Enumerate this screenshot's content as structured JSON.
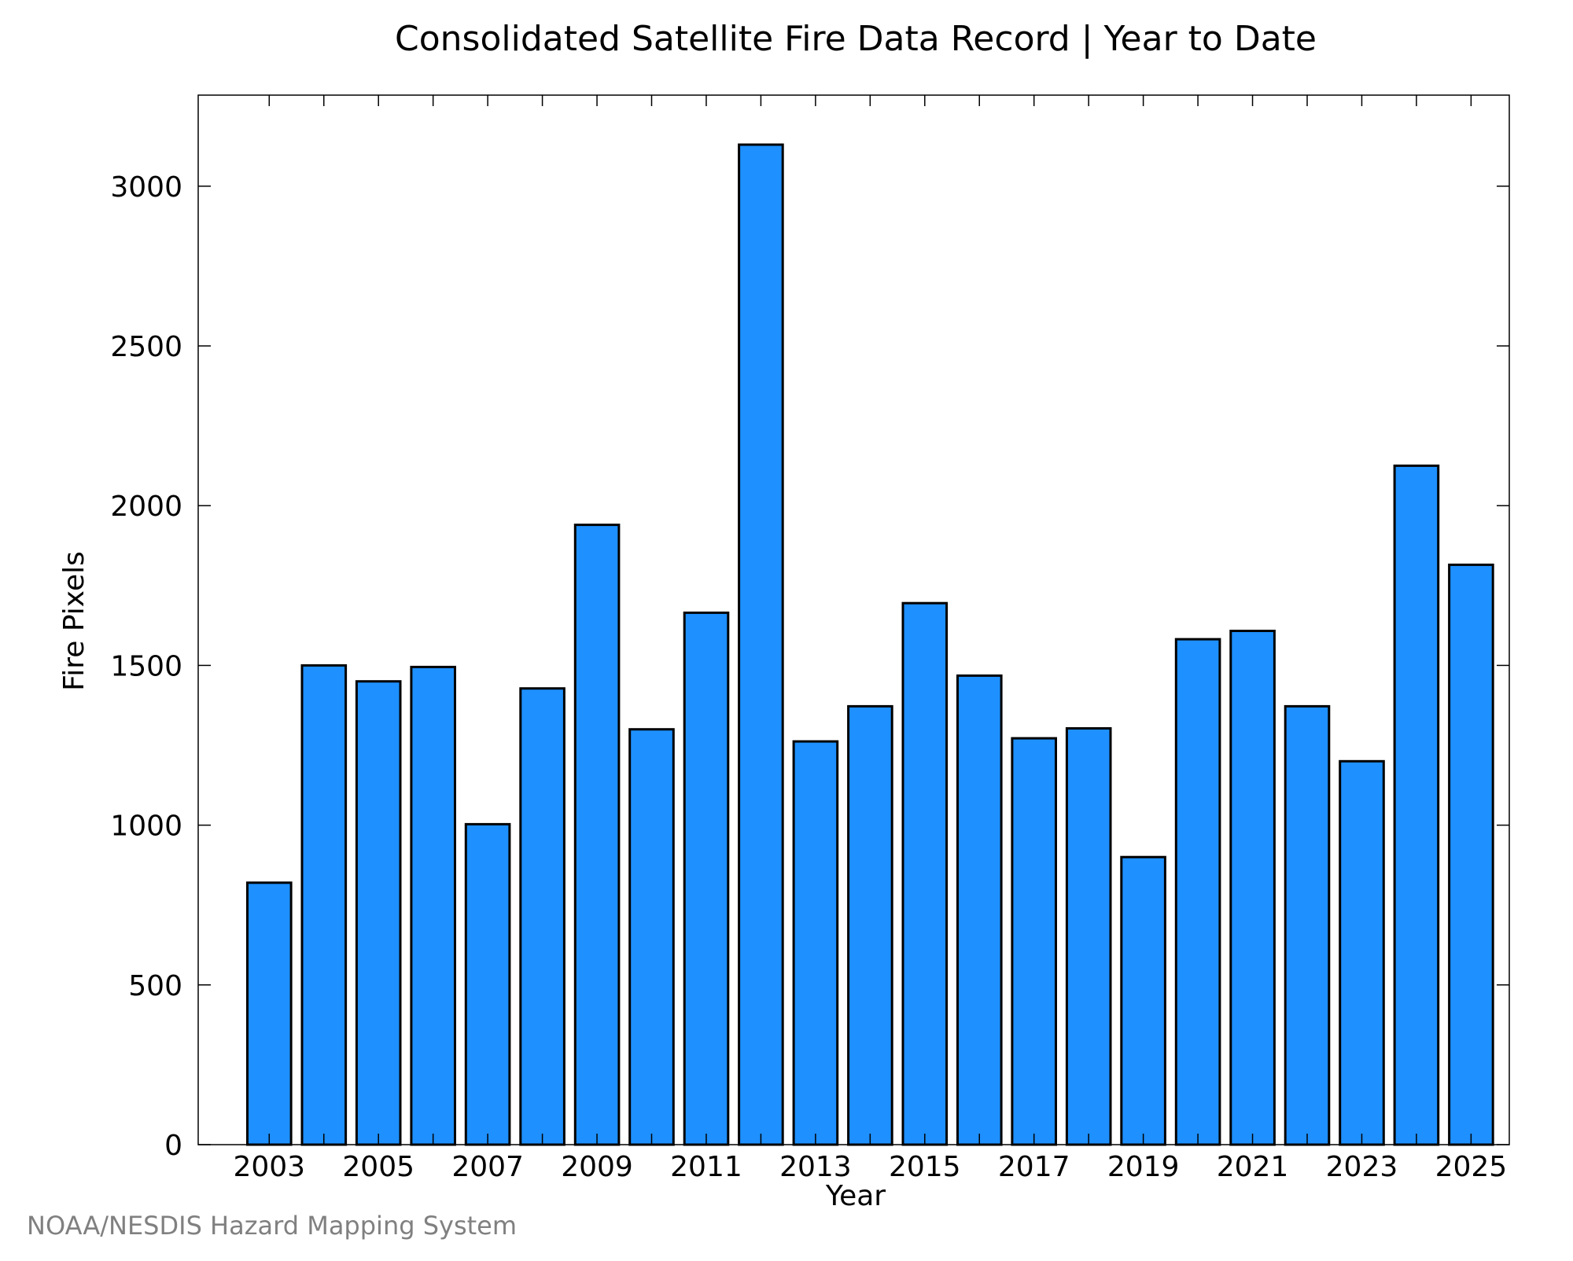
{
  "chart_data": {
    "type": "bar",
    "title": "Consolidated Satellite Fire Data Record | Year to Date",
    "xlabel": "Year",
    "ylabel": "Fire Pixels",
    "categories": [
      2003,
      2004,
      2005,
      2006,
      2007,
      2008,
      2009,
      2010,
      2011,
      2012,
      2013,
      2014,
      2015,
      2016,
      2017,
      2018,
      2019,
      2020,
      2021,
      2022,
      2023,
      2024,
      2025
    ],
    "values": [
      820,
      1500,
      1450,
      1495,
      1003,
      1428,
      1940,
      1300,
      1665,
      3130,
      1262,
      1372,
      1695,
      1468,
      1272,
      1303,
      900,
      1582,
      1608,
      1372,
      1200,
      2125,
      1815
    ],
    "x_tick_labels": [
      "2003",
      "2005",
      "2007",
      "2009",
      "2011",
      "2013",
      "2015",
      "2017",
      "2019",
      "2021",
      "2023",
      "2025"
    ],
    "y_ticks": [
      0,
      500,
      1000,
      1500,
      2000,
      2500,
      3000
    ],
    "ylim": [
      0,
      3285
    ],
    "xlim": [
      2001.7,
      2025.7
    ],
    "grid": false,
    "bar_color": "#1E90FF",
    "edge_color": "#000000"
  },
  "credit": "NOAA/NESDIS Hazard Mapping System"
}
